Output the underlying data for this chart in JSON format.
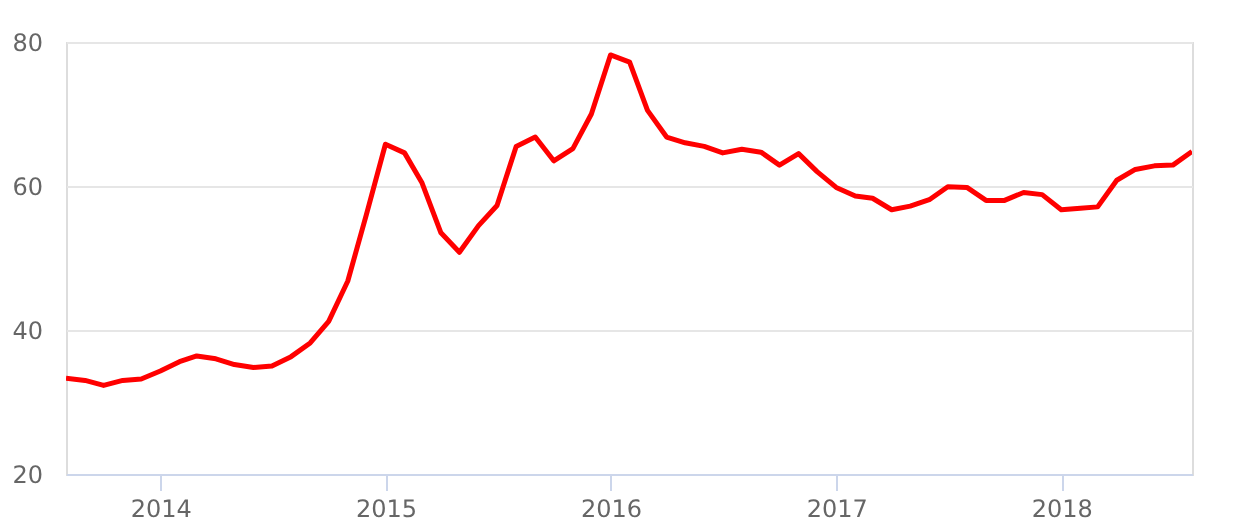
{
  "chart_data": {
    "type": "line",
    "x": [
      "2013-08",
      "2013-09",
      "2013-10",
      "2013-11",
      "2013-12",
      "2014-01",
      "2014-02",
      "2014-03",
      "2014-04",
      "2014-05",
      "2014-06",
      "2014-07",
      "2014-08",
      "2014-09",
      "2014-10",
      "2014-11",
      "2014-12",
      "2015-01",
      "2015-02",
      "2015-03",
      "2015-04",
      "2015-05",
      "2015-06",
      "2015-07",
      "2015-08",
      "2015-09",
      "2015-10",
      "2015-11",
      "2015-12",
      "2016-01",
      "2016-02",
      "2016-03",
      "2016-04",
      "2016-05",
      "2016-06",
      "2016-07",
      "2016-08",
      "2016-09",
      "2016-10",
      "2016-11",
      "2016-12",
      "2017-01",
      "2017-02",
      "2017-03",
      "2017-04",
      "2017-05",
      "2017-06",
      "2017-07",
      "2017-08",
      "2017-09",
      "2017-10",
      "2017-11",
      "2017-12",
      "2018-01",
      "2018-02",
      "2018-03",
      "2018-04",
      "2018-05",
      "2018-06",
      "2018-07",
      "2018-08"
    ],
    "series": [
      {
        "color": "#ff0000",
        "values": [
          33.3,
          33.0,
          32.3,
          33.0,
          33.2,
          34.3,
          35.6,
          36.4,
          36.0,
          35.2,
          34.8,
          35.0,
          36.3,
          38.2,
          41.2,
          46.8,
          56.0,
          65.8,
          64.6,
          60.5,
          53.5,
          50.8,
          54.5,
          57.3,
          65.5,
          66.8,
          63.5,
          65.2,
          70.0,
          78.2,
          77.2,
          70.5,
          66.8,
          66.0,
          65.5,
          64.6,
          65.1,
          64.7,
          62.9,
          64.5,
          62.0,
          59.8,
          58.6,
          58.3,
          56.7,
          57.2,
          58.1,
          59.9,
          59.8,
          58.0,
          58.0,
          59.1,
          58.8,
          56.7,
          56.9,
          57.1,
          60.8,
          62.3,
          62.8,
          62.9,
          64.8
        ]
      }
    ],
    "xlim": [
      "2013-08",
      "2018-08"
    ],
    "xticks": [
      {
        "value": "2014-01",
        "label": "2014"
      },
      {
        "value": "2015-01",
        "label": "2015"
      },
      {
        "value": "2016-01",
        "label": "2016"
      },
      {
        "value": "2017-01",
        "label": "2017"
      },
      {
        "value": "2018-01",
        "label": "2018"
      }
    ],
    "ylim": [
      20,
      80
    ],
    "yticks": [
      20,
      40,
      60,
      80
    ],
    "grid": "y",
    "marker": "none",
    "line_style": "solid"
  }
}
